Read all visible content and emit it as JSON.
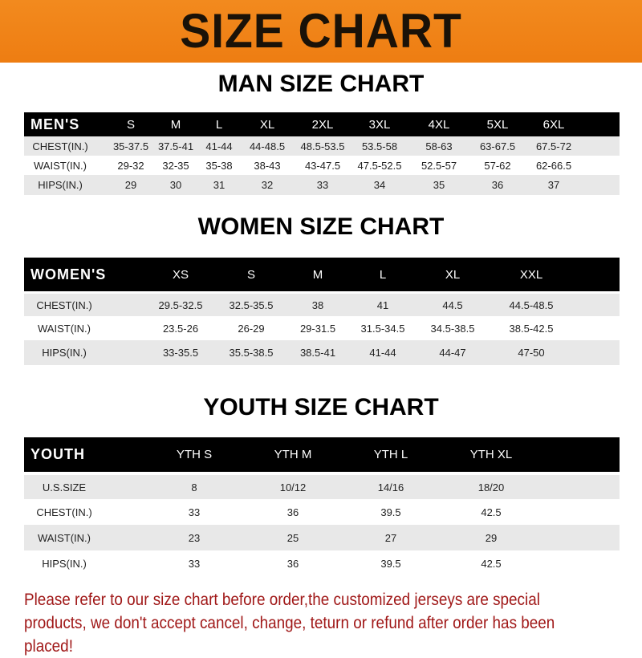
{
  "banner_title": "SIZE CHART",
  "men": {
    "title": "MAN SIZE CHART",
    "header": [
      "MEN'S",
      "S",
      "M",
      "L",
      "XL",
      "2XL",
      "3XL",
      "4XL",
      "5XL",
      "6XL"
    ],
    "rows": [
      [
        "CHEST(IN.)",
        "35-37.5",
        "37.5-41",
        "41-44",
        "44-48.5",
        "48.5-53.5",
        "53.5-58",
        "58-63",
        "63-67.5",
        "67.5-72"
      ],
      [
        "WAIST(IN.)",
        "29-32",
        "32-35",
        "35-38",
        "38-43",
        "43-47.5",
        "47.5-52.5",
        "52.5-57",
        "57-62",
        "62-66.5"
      ],
      [
        "HIPS(IN.)",
        "29",
        "30",
        "31",
        "32",
        "33",
        "34",
        "35",
        "36",
        "37"
      ]
    ]
  },
  "women": {
    "title": "WOMEN SIZE CHART",
    "header": [
      "WOMEN'S",
      "XS",
      "S",
      "M",
      "L",
      "XL",
      "XXL"
    ],
    "rows": [
      [
        "CHEST(IN.)",
        "29.5-32.5",
        "32.5-35.5",
        "38",
        "41",
        "44.5",
        "44.5-48.5"
      ],
      [
        "WAIST(IN.)",
        "23.5-26",
        "26-29",
        "29-31.5",
        "31.5-34.5",
        "34.5-38.5",
        "38.5-42.5"
      ],
      [
        "HIPS(IN.)",
        "33-35.5",
        "35.5-38.5",
        "38.5-41",
        "41-44",
        "44-47",
        "47-50"
      ]
    ]
  },
  "youth": {
    "title": "YOUTH SIZE CHART",
    "header": [
      "YOUTH",
      "YTH S",
      "YTH M",
      "YTH L",
      "YTH XL"
    ],
    "rows": [
      [
        "U.S.SIZE",
        "8",
        "10/12",
        "14/16",
        "18/20"
      ],
      [
        "CHEST(IN.)",
        "33",
        "36",
        "39.5",
        "42.5"
      ],
      [
        "WAIST(IN.)",
        "23",
        "25",
        "27",
        "29"
      ],
      [
        "HIPS(IN.)",
        "33",
        "36",
        "39.5",
        "42.5"
      ]
    ]
  },
  "notice": "Please refer to our size chart before order,the customized jerseys are special products, we don't accept cancel, change, teturn or refund after order has been placed!",
  "colors": {
    "banner": "#f08418",
    "header_row": "#000000",
    "stripe": "#e8e8e8",
    "notice": "#a01818"
  }
}
